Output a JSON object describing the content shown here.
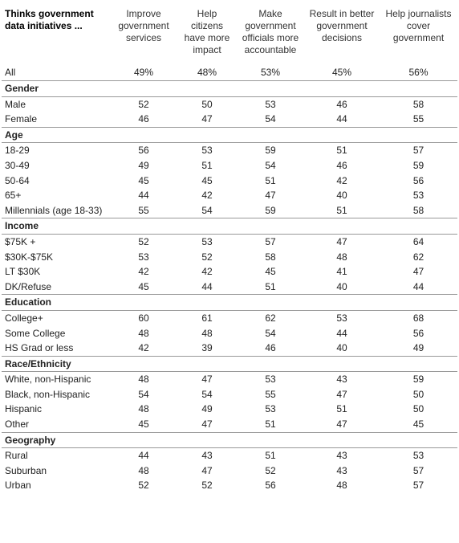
{
  "table": {
    "corner": "Thinks government data initiatives ...",
    "columns": [
      "Improve government services",
      "Help citizens have more impact",
      "Make government officials more accountable",
      "Result in better government decisions",
      "Help journalists cover government"
    ],
    "all": {
      "label": "All",
      "values": [
        "49%",
        "48%",
        "53%",
        "45%",
        "56%"
      ]
    },
    "sections": [
      {
        "title": "Gender",
        "rows": [
          {
            "label": "Male",
            "values": [
              52,
              50,
              53,
              46,
              58
            ]
          },
          {
            "label": "Female",
            "values": [
              46,
              47,
              54,
              44,
              55
            ]
          }
        ]
      },
      {
        "title": "Age",
        "rows": [
          {
            "label": "18-29",
            "values": [
              56,
              53,
              59,
              51,
              57
            ]
          },
          {
            "label": "30-49",
            "values": [
              49,
              51,
              54,
              46,
              59
            ]
          },
          {
            "label": "50-64",
            "values": [
              45,
              45,
              51,
              42,
              56
            ]
          },
          {
            "label": "65+",
            "values": [
              44,
              42,
              47,
              40,
              53
            ]
          },
          {
            "label": "Millennials (age 18-33)",
            "values": [
              55,
              54,
              59,
              51,
              58
            ]
          }
        ]
      },
      {
        "title": "Income",
        "rows": [
          {
            "label": "$75K +",
            "values": [
              52,
              53,
              57,
              47,
              64
            ]
          },
          {
            "label": "$30K-$75K",
            "values": [
              53,
              52,
              58,
              48,
              62
            ]
          },
          {
            "label": "LT $30K",
            "values": [
              42,
              42,
              45,
              41,
              47
            ]
          },
          {
            "label": "DK/Refuse",
            "values": [
              45,
              44,
              51,
              40,
              44
            ]
          }
        ]
      },
      {
        "title": "Education",
        "rows": [
          {
            "label": "College+",
            "values": [
              60,
              61,
              62,
              53,
              68
            ]
          },
          {
            "label": "Some College",
            "values": [
              48,
              48,
              54,
              44,
              56
            ]
          },
          {
            "label": "HS Grad or less",
            "values": [
              42,
              39,
              46,
              40,
              49
            ]
          }
        ]
      },
      {
        "title": "Race/Ethnicity",
        "rows": [
          {
            "label": "White, non-Hispanic",
            "values": [
              48,
              47,
              53,
              43,
              59
            ]
          },
          {
            "label": "Black, non-Hispanic",
            "values": [
              54,
              54,
              55,
              47,
              50
            ]
          },
          {
            "label": "Hispanic",
            "values": [
              48,
              49,
              53,
              51,
              50
            ]
          },
          {
            "label": "Other",
            "values": [
              45,
              47,
              51,
              47,
              45
            ]
          }
        ]
      },
      {
        "title": "Geography",
        "rows": [
          {
            "label": "Rural",
            "values": [
              44,
              43,
              51,
              43,
              53
            ]
          },
          {
            "label": "Suburban",
            "values": [
              48,
              47,
              52,
              43,
              57
            ]
          },
          {
            "label": "Urban",
            "values": [
              52,
              52,
              56,
              48,
              57
            ]
          }
        ]
      }
    ]
  }
}
